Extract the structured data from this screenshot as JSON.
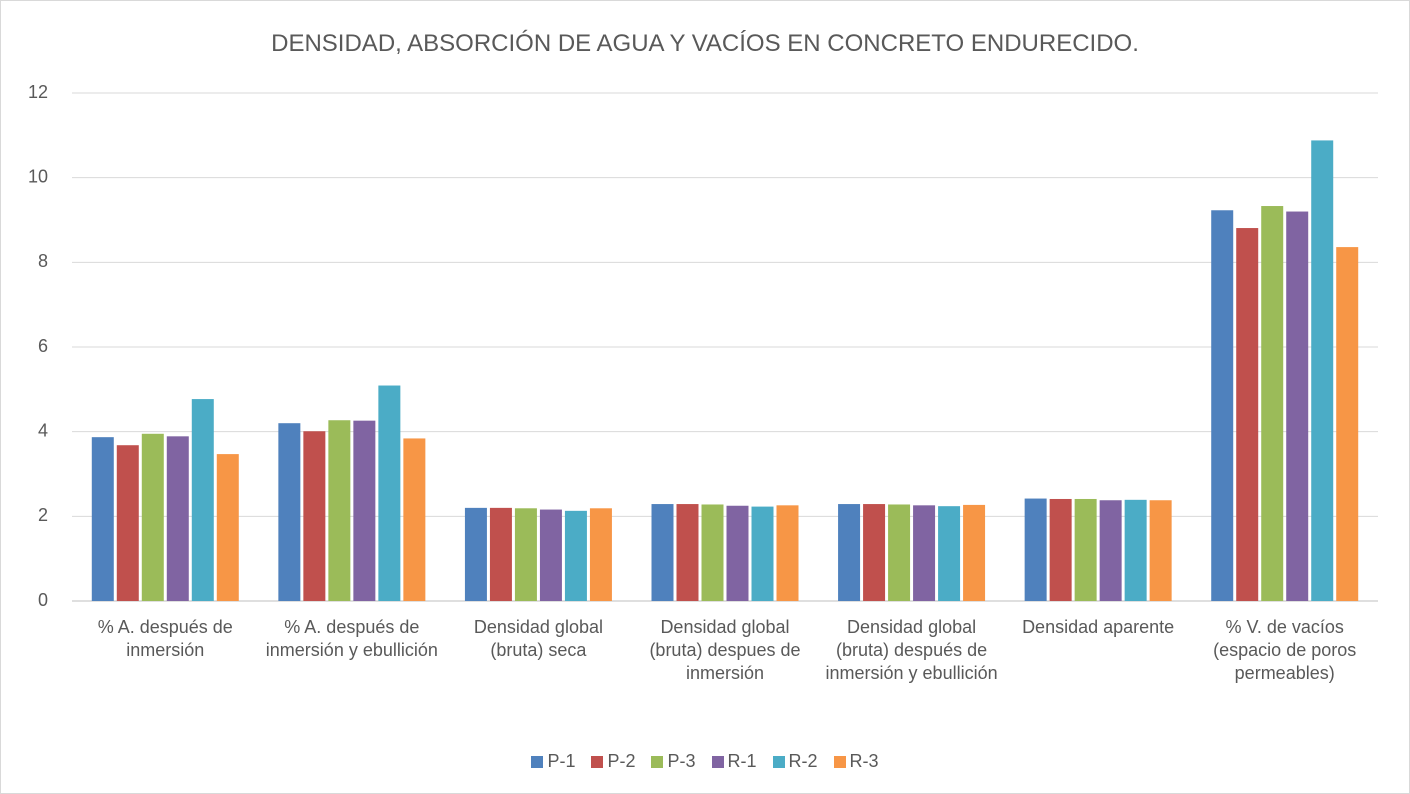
{
  "chart_data": {
    "type": "bar",
    "title": "DENSIDAD, ABSORCIÓN DE AGUA Y VACÍOS EN CONCRETO ENDURECIDO.",
    "categories": [
      "% A. después de inmersión",
      "% A. después de inmersión y ebullición",
      "Densidad global (bruta) seca",
      "Densidad global (bruta) despues de inmersión",
      "Densidad global (bruta) después de inmersión y ebullición",
      "Densidad aparente",
      "% V. de vacíos (espacio de poros permeables)"
    ],
    "series": [
      {
        "name": "P-1",
        "color": "#4f81bd",
        "values": [
          3.87,
          4.2,
          2.2,
          2.29,
          2.29,
          2.42,
          9.23
        ]
      },
      {
        "name": "P-2",
        "color": "#c0504d",
        "values": [
          3.68,
          4.01,
          2.2,
          2.29,
          2.29,
          2.41,
          8.81
        ]
      },
      {
        "name": "P-3",
        "color": "#9bbb59",
        "values": [
          3.95,
          4.27,
          2.19,
          2.28,
          2.28,
          2.41,
          9.33
        ]
      },
      {
        "name": "R-1",
        "color": "#8064a2",
        "values": [
          3.89,
          4.26,
          2.16,
          2.25,
          2.26,
          2.38,
          9.2
        ]
      },
      {
        "name": "R-2",
        "color": "#4bacc6",
        "values": [
          4.77,
          5.09,
          2.13,
          2.23,
          2.24,
          2.39,
          10.88
        ]
      },
      {
        "name": "R-3",
        "color": "#f79646",
        "values": [
          3.47,
          3.84,
          2.19,
          2.26,
          2.27,
          2.38,
          8.36
        ]
      }
    ],
    "ylim": [
      0,
      12
    ],
    "yticks": [
      0,
      2,
      4,
      6,
      8,
      10,
      12
    ],
    "grid": true,
    "legend": "bottom"
  }
}
